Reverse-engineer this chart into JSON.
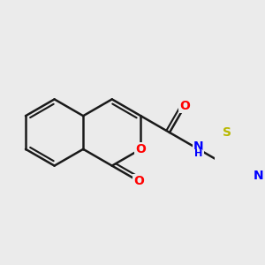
{
  "bg_color": "#ebebeb",
  "bond_color": "#1a1a1a",
  "bond_width": 1.8,
  "atom_colors": {
    "O": "#ff0000",
    "N": "#0000ff",
    "S": "#b8b800",
    "C": "#1a1a1a"
  },
  "font_size_atom": 10,
  "fig_size": [
    3.0,
    3.0
  ],
  "dpi": 100
}
